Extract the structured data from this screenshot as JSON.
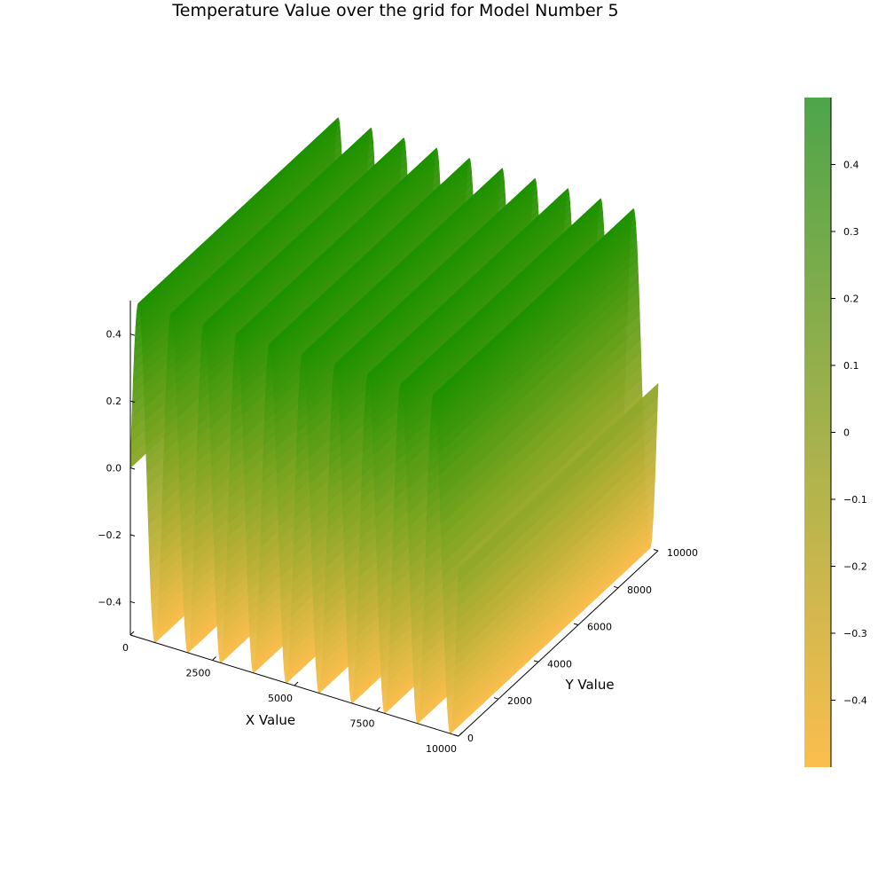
{
  "chart_data": {
    "type": "surface",
    "title": "Temperature Value over the grid for Model Number 5",
    "xlabel": "X Value",
    "ylabel": "Y Value",
    "zlabel": "",
    "xlim": [
      0,
      10000
    ],
    "ylim": [
      0,
      10000
    ],
    "zlim": [
      -0.5,
      0.5
    ],
    "x_ticks": [
      0,
      2500,
      5000,
      7500,
      10000
    ],
    "x_tick_labels": [
      "0",
      "2500",
      "5000",
      "7500",
      "10000"
    ],
    "y_ticks": [
      0,
      2000,
      4000,
      6000,
      8000,
      10000
    ],
    "y_tick_labels": [
      "0",
      "2000",
      "4000",
      "6000",
      "8000",
      "10000"
    ],
    "z_ticks": [
      -0.4,
      -0.2,
      0.0,
      0.2,
      0.4
    ],
    "z_tick_labels": [
      "−0.4",
      "−0.2",
      "0.0",
      "0.2",
      "0.4"
    ],
    "surface": {
      "description": "z = 0.5·sin(2π·x/1000); constant along Y",
      "amplitude": 0.5,
      "period_x": 1000,
      "x_samples": [
        0,
        250,
        500,
        750,
        1000,
        1250,
        1500,
        1750,
        2000,
        2250,
        2500,
        2750,
        3000,
        3250,
        3500,
        3750,
        4000,
        4250,
        4500,
        4750,
        5000,
        5250,
        5500,
        5750,
        6000,
        6250,
        6500,
        6750,
        7000,
        7250,
        7500,
        7750,
        8000,
        8250,
        8500,
        8750,
        9000,
        9250,
        9500,
        9750,
        10000
      ],
      "z_samples": [
        0,
        0.5,
        0,
        -0.5,
        0,
        0.5,
        0,
        -0.5,
        0,
        0.5,
        0,
        -0.5,
        0,
        0.5,
        0,
        -0.5,
        0,
        0.5,
        0,
        -0.5,
        0,
        0.5,
        0,
        -0.5,
        0,
        0.5,
        0,
        -0.5,
        0,
        0.5,
        0,
        -0.5,
        0,
        0.5,
        0,
        -0.5,
        0,
        0.5,
        0,
        -0.5,
        0
      ]
    },
    "colorbar": {
      "colormap": [
        "#fbbe4e",
        "#1e9100"
      ],
      "range": [
        -0.5,
        0.5
      ],
      "ticks": [
        -0.4,
        -0.3,
        -0.2,
        -0.1,
        0,
        0.1,
        0.2,
        0.3,
        0.4
      ],
      "tick_labels": [
        "−0.4",
        "−0.3",
        "−0.2",
        "−0.1",
        "0",
        "0.1",
        "0.2",
        "0.3",
        "0.4"
      ]
    },
    "grid": false,
    "legend": "none"
  }
}
